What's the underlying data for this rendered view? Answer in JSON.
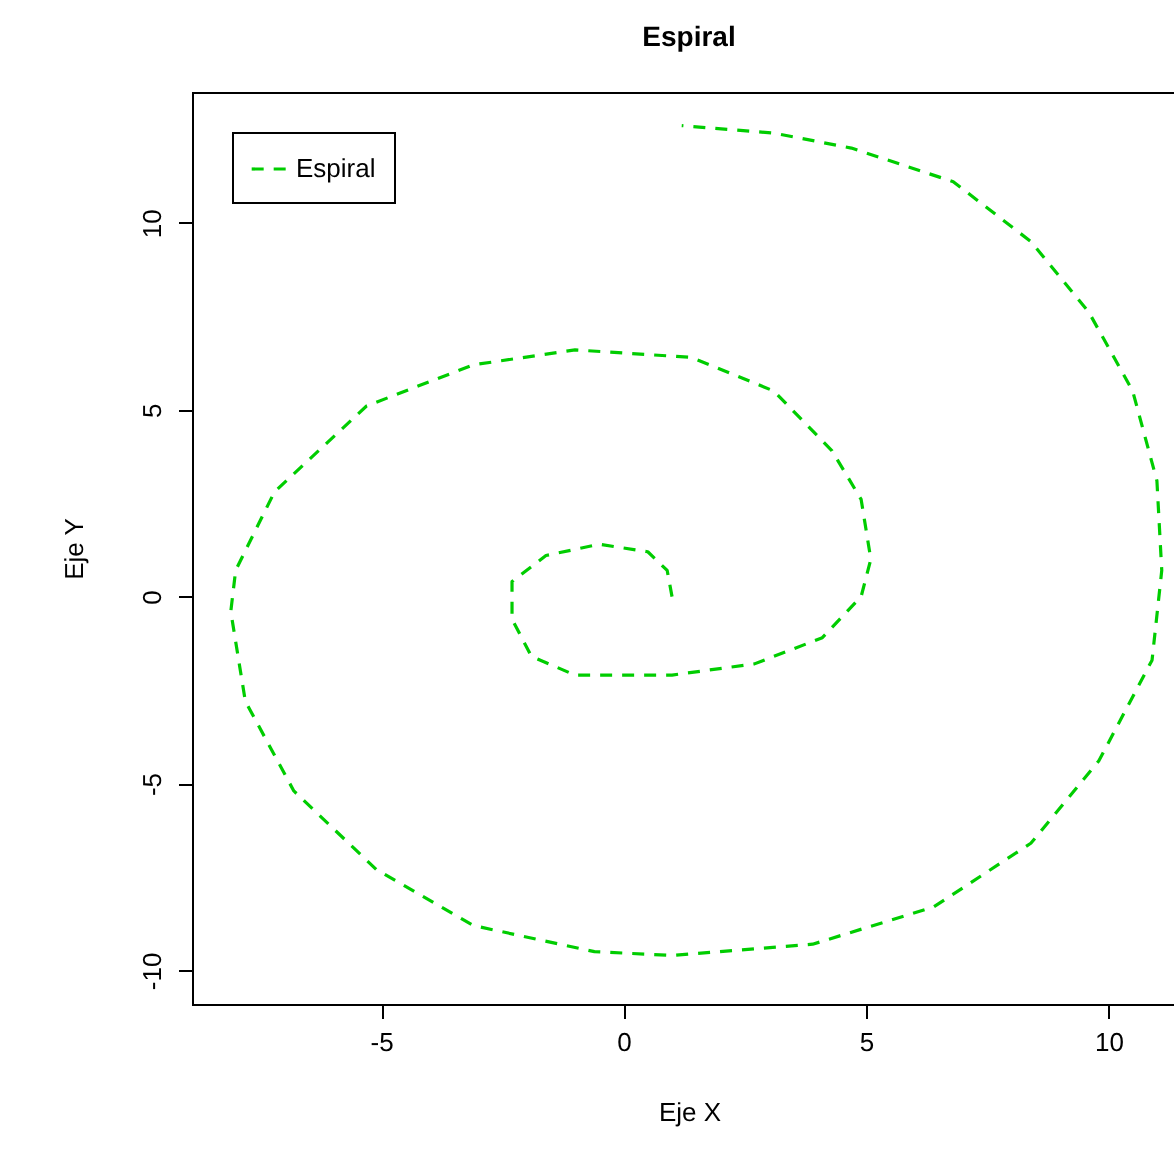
{
  "chart_data": {
    "type": "line",
    "title": "Espiral",
    "xlabel": "Eje X",
    "ylabel": "Eje Y",
    "xlim": [
      -8.9,
      11.6
    ],
    "ylim": [
      -10.9,
      13.5
    ],
    "xticks": [
      -5,
      0,
      5,
      10
    ],
    "yticks": [
      -10,
      -5,
      0,
      5,
      10
    ],
    "grid": false,
    "legend": "top left",
    "line_style": "dashed",
    "series": [
      {
        "name": "Espiral",
        "color": "#00cd00",
        "x": [
          1.0,
          0.9,
          0.5,
          -0.5,
          -1.6,
          -2.3,
          -2.3,
          -1.9,
          -1.0,
          1.0,
          2.7,
          4.1,
          4.9,
          5.1,
          4.9,
          4.3,
          3.1,
          1.4,
          -1.0,
          -3.1,
          -5.3,
          -7.2,
          -8.0,
          -8.1,
          -7.8,
          -6.8,
          -5.1,
          -3.1,
          -0.6,
          1.0,
          3.9,
          6.4,
          8.4,
          9.8,
          10.9,
          11.1,
          11.0,
          10.5,
          9.6,
          8.4,
          6.8,
          4.7,
          3.1,
          1.2
        ],
        "values": [
          0.0,
          0.7,
          1.2,
          1.4,
          1.1,
          0.4,
          -0.6,
          -1.6,
          -2.1,
          -2.1,
          -1.8,
          -1.1,
          0.0,
          1.0,
          2.6,
          3.9,
          5.5,
          6.4,
          6.6,
          6.2,
          5.1,
          2.8,
          0.7,
          -0.4,
          -2.8,
          -5.2,
          -7.3,
          -8.8,
          -9.5,
          -9.6,
          -9.3,
          -8.3,
          -6.6,
          -4.4,
          -1.7,
          0.7,
          3.1,
          5.5,
          7.6,
          9.5,
          11.1,
          12.0,
          12.4,
          12.6
        ]
      }
    ]
  }
}
